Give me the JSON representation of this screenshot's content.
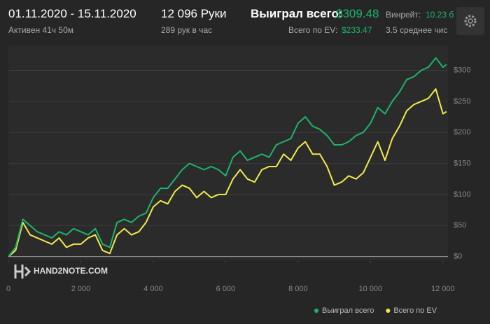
{
  "header": {
    "date_range": "01.11.2020 - 15.11.2020",
    "active": "Активен 41ч 50м",
    "hands": "12 096 Руки",
    "hands_per_hour": "289 рук в час",
    "won_label": "Выиграл всего:",
    "won_value": "$309.48",
    "ev_label": "Всего по EV:",
    "ev_value": "$233.47",
    "winrate_label": "Винрейт:",
    "winrate_value": "10.23 б",
    "avg_label": "3.5 среднее чис"
  },
  "chart_data": {
    "type": "line",
    "watermark": "HAND2NOTE.COM",
    "x": [
      0,
      200,
      400,
      600,
      800,
      1000,
      1200,
      1400,
      1600,
      1800,
      2000,
      2200,
      2400,
      2600,
      2800,
      3000,
      3200,
      3400,
      3600,
      3800,
      4000,
      4200,
      4400,
      4600,
      4800,
      5000,
      5200,
      5400,
      5600,
      5800,
      6000,
      6200,
      6400,
      6600,
      6800,
      7000,
      7200,
      7400,
      7600,
      7800,
      8000,
      8200,
      8400,
      8600,
      8800,
      9000,
      9200,
      9400,
      9600,
      9800,
      10000,
      10200,
      10400,
      10600,
      10800,
      11000,
      11200,
      11400,
      11600,
      11800,
      12000,
      12096
    ],
    "series": [
      {
        "name": "Выиграл всего",
        "color": "#1db46a",
        "values": [
          0,
          15,
          60,
          50,
          40,
          35,
          30,
          40,
          35,
          45,
          40,
          35,
          45,
          20,
          15,
          55,
          60,
          55,
          65,
          70,
          95,
          110,
          110,
          125,
          140,
          150,
          145,
          140,
          145,
          140,
          130,
          160,
          170,
          155,
          160,
          165,
          160,
          180,
          185,
          190,
          215,
          225,
          210,
          205,
          195,
          180,
          180,
          185,
          195,
          200,
          215,
          240,
          230,
          250,
          265,
          285,
          290,
          300,
          305,
          320,
          305,
          309.48
        ]
      },
      {
        "name": "Всего по EV",
        "color": "#f2ea4b",
        "values": [
          0,
          10,
          55,
          35,
          30,
          25,
          20,
          30,
          15,
          20,
          20,
          30,
          35,
          10,
          5,
          35,
          45,
          35,
          40,
          55,
          80,
          90,
          85,
          105,
          115,
          110,
          95,
          105,
          95,
          100,
          100,
          125,
          140,
          125,
          120,
          140,
          145,
          145,
          165,
          155,
          175,
          185,
          165,
          165,
          145,
          115,
          120,
          130,
          125,
          135,
          160,
          185,
          155,
          190,
          210,
          235,
          245,
          250,
          255,
          270,
          230,
          233.47
        ]
      }
    ],
    "xlim": [
      0,
      12100
    ],
    "ylim": [
      -6,
      340
    ],
    "xticks": [
      0,
      {
        "value": 2000,
        "label": "2 000"
      },
      {
        "value": 4000,
        "label": "4 000"
      },
      {
        "value": 6000,
        "label": "6 000"
      },
      {
        "value": 8000,
        "label": "8 000"
      },
      {
        "value": 10000,
        "label": "10 000"
      },
      {
        "value": 12000,
        "label": "12 000"
      }
    ],
    "yticks": [
      {
        "value": 0,
        "label": "$0"
      },
      {
        "value": 50,
        "label": "$50"
      },
      {
        "value": 100,
        "label": "$100"
      },
      {
        "value": 150,
        "label": "$150"
      },
      {
        "value": 200,
        "label": "$200"
      },
      {
        "value": 250,
        "label": "$250"
      },
      {
        "value": 300,
        "label": "$300"
      }
    ],
    "grid": true,
    "legend": "bottom-right"
  }
}
